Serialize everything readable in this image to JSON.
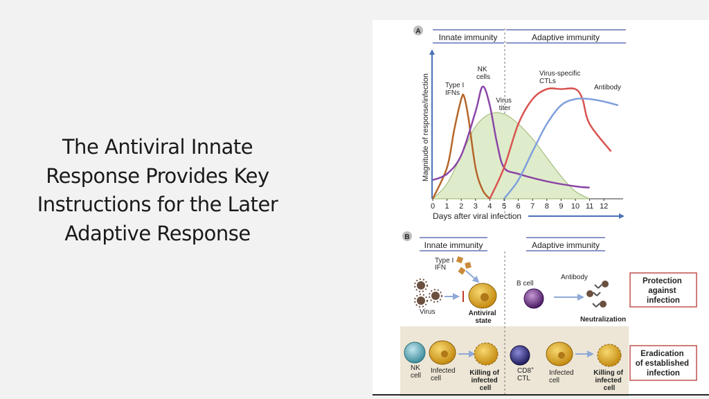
{
  "slide": {
    "title": "The Antiviral Innate Response Provides Key Instructions for the Later Adaptive Response"
  },
  "panel_a": {
    "label": "A",
    "innate_header": "Innate immunity",
    "adaptive_header": "Adaptive immunity",
    "y_axis_label": "Magnitude of response/infection",
    "x_axis_label": "Days after viral infection",
    "curve_labels": {
      "type1_ifn": [
        "Type I",
        "IFNs"
      ],
      "nk_cells": [
        "NK",
        "cells"
      ],
      "virus_titer": [
        "Virus",
        "titer"
      ],
      "ctls": [
        "Virus-specific",
        "CTLs"
      ],
      "antibody": "Antibody"
    },
    "colors": {
      "ifn": "#b5652a",
      "nk": "#8a45a6",
      "virus_fill": "#dfeccb",
      "virus_stroke": "#98b46a",
      "ctl": "#d9534f",
      "antibody": "#7f9fdc",
      "header_rule": "#8a95c8",
      "arrow": "#4a72b8"
    }
  },
  "chart_data": {
    "type": "line",
    "xlabel": "Days after viral infection",
    "ylabel": "Magnitude of response/infection",
    "xlim": [
      0,
      13
    ],
    "ylim": [
      0,
      1
    ],
    "x_ticks": [
      "0",
      "1",
      "2",
      "3",
      "4",
      "5",
      "6",
      "7",
      "8",
      "9",
      "10",
      "11",
      "12"
    ],
    "series": [
      {
        "name": "Virus titer",
        "x": [
          0,
          1,
          2,
          3,
          4,
          5,
          6,
          7,
          8,
          9,
          10,
          11
        ],
        "y": [
          0.0,
          0.12,
          0.35,
          0.58,
          0.68,
          0.68,
          0.6,
          0.48,
          0.33,
          0.18,
          0.06,
          0.0
        ]
      },
      {
        "name": "Type I IFNs",
        "x": [
          0,
          1,
          1.5,
          2,
          2.2,
          2.5,
          3,
          3.5,
          4
        ],
        "y": [
          0.0,
          0.25,
          0.55,
          0.8,
          0.82,
          0.65,
          0.25,
          0.07,
          0.0
        ]
      },
      {
        "name": "NK cells",
        "x": [
          0,
          1,
          2,
          3,
          3.5,
          4,
          4.5,
          5,
          6,
          8,
          10,
          11
        ],
        "y": [
          0.15,
          0.2,
          0.35,
          0.7,
          0.9,
          0.75,
          0.45,
          0.25,
          0.2,
          0.14,
          0.1,
          0.09
        ]
      },
      {
        "name": "Virus-specific CTLs",
        "x": [
          4,
          5,
          6,
          7,
          8,
          9,
          10,
          10.5,
          11,
          12.5
        ],
        "y": [
          0.0,
          0.25,
          0.6,
          0.8,
          0.88,
          0.88,
          0.88,
          0.8,
          0.6,
          0.38
        ]
      },
      {
        "name": "Antibody",
        "x": [
          5,
          6,
          7,
          8,
          9,
          10,
          11,
          12,
          13
        ],
        "y": [
          0.0,
          0.15,
          0.38,
          0.6,
          0.75,
          0.8,
          0.8,
          0.78,
          0.75
        ]
      }
    ]
  },
  "panel_b": {
    "label": "B",
    "innate_header": "Innate immunity",
    "adaptive_header": "Adaptive immunity",
    "labels": {
      "type1_ifn": [
        "Type I",
        "IFN"
      ],
      "virus": "Virus",
      "antiviral_state": [
        "Antiviral",
        "state"
      ],
      "b_cell": "B cell",
      "antibody": "Antibody",
      "neutralization": "Neutralization",
      "protection": [
        "Protection",
        "against",
        "infection"
      ],
      "nk_cell": [
        "NK",
        "cell"
      ],
      "infected_cell": [
        "Infected",
        "cell"
      ],
      "killing": [
        "Killing of",
        "infected",
        "cell"
      ],
      "cd8": [
        "CD8",
        "+"
      ],
      "ctl": "CTL",
      "eradication": [
        "Eradication",
        "of established",
        "infection"
      ]
    },
    "colors": {
      "cell_gold": "#d9a520",
      "b_cell": "#5c2a78",
      "cd8_cell": "#2e2a7a",
      "nk_cell": "#5fa9b8",
      "virus": "#6b5040",
      "box_border": "#c0504d",
      "band_bg": "#ede6d6",
      "arrow": "#8fa8d8",
      "inhibit": "#c0392b"
    }
  }
}
